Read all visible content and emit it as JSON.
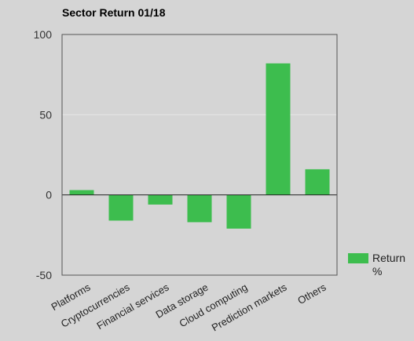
{
  "chart_data": {
    "type": "bar",
    "title": "Sector Return 01/18",
    "xlabel": "",
    "ylabel": "",
    "categories": [
      "Platforms",
      "Cryptocurrencies",
      "Financial services",
      "Data storage",
      "Cloud computing",
      "Prediction markets",
      "Others"
    ],
    "series": [
      {
        "name": "Return %",
        "values": [
          3,
          -16,
          -6,
          -17,
          -21,
          82,
          16
        ],
        "color": "#3dbd4e"
      }
    ],
    "ylim": [
      -50,
      100
    ],
    "yticks": [
      "100",
      "50",
      "0",
      "-50"
    ],
    "ytick_values": [
      100,
      50,
      0,
      -50
    ],
    "grid": true,
    "legend": {
      "position": "right",
      "label_lines": [
        "Return",
        "%"
      ]
    },
    "colors": {
      "background": "#d5d5d5",
      "bar": "#3dbd4e",
      "axis": "#555555",
      "grid": "#e6e6e6"
    }
  }
}
